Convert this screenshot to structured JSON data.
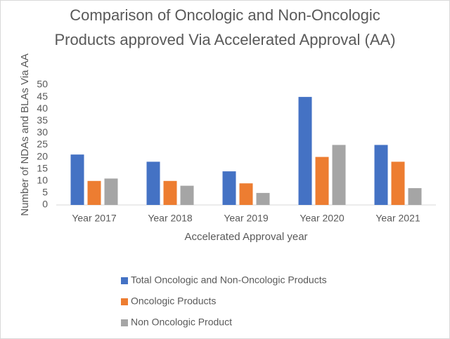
{
  "chart_data": {
    "type": "bar",
    "title": [
      "Comparison of Oncologic and Non-Oncologic",
      "Products approved Via Accelerated Approval (AA)"
    ],
    "x_label": "Accelerated Approval year",
    "y_label": "Number of NDAs and BLAs Via AA",
    "categories": [
      "Year 2017",
      "Year 2018",
      "Year 2019",
      "Year 2020",
      "Year 2021"
    ],
    "series": [
      {
        "name": "Total Oncologic and Non-Oncologic Products",
        "color": "#4472c4",
        "values": [
          21,
          18,
          14,
          45,
          25
        ]
      },
      {
        "name": "Oncologic Products",
        "color": "#ed7d31",
        "values": [
          10,
          10,
          9,
          20,
          18
        ]
      },
      {
        "name": "Non Oncologic Product",
        "color": "#a5a5a5",
        "values": [
          11,
          8,
          5,
          25,
          7
        ]
      }
    ],
    "ylim": [
      0,
      50
    ],
    "yticks": [
      0,
      5,
      10,
      15,
      20,
      25,
      30,
      35,
      40,
      45,
      50
    ],
    "grid": false,
    "legend": "bottom"
  }
}
